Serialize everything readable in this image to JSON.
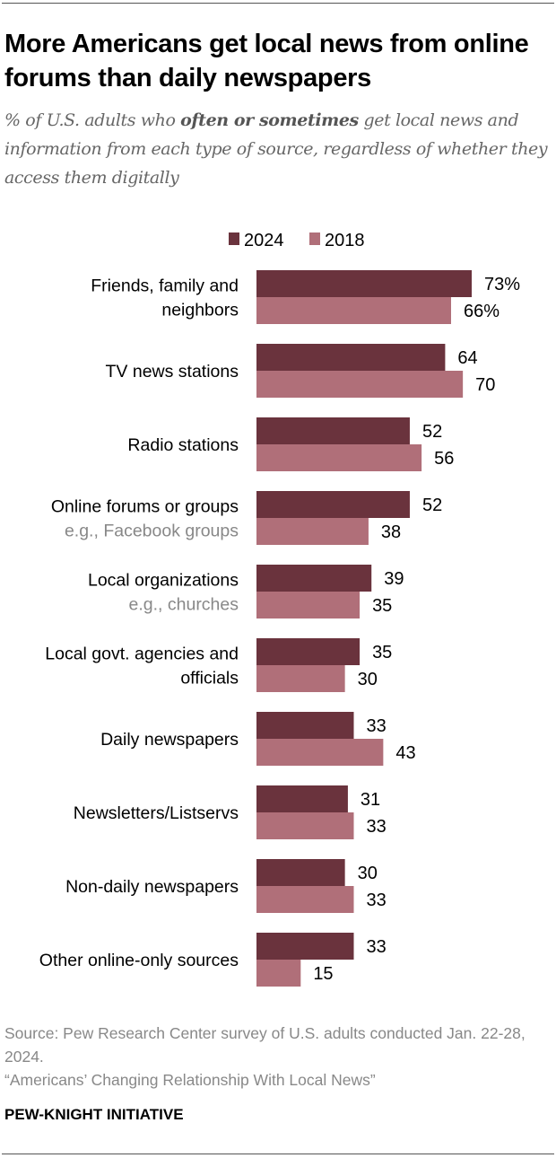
{
  "title": "More Americans get local news from online forums than daily newspapers",
  "subtitle": {
    "pre": "% of U.S. adults who ",
    "bold": "often or sometimes",
    "post": " get local news and information from each type of source, regardless of whether they access them digitally"
  },
  "chart_data": {
    "type": "bar",
    "orientation": "horizontal",
    "categories": [
      {
        "label": [
          "Friends, family and",
          "neighbors"
        ],
        "note": ""
      },
      {
        "label": [
          "TV news stations"
        ],
        "note": ""
      },
      {
        "label": [
          "Radio stations"
        ],
        "note": ""
      },
      {
        "label": [
          "Online forums or groups"
        ],
        "note": "e.g., Facebook groups"
      },
      {
        "label": [
          "Local organizations"
        ],
        "note": "e.g., churches"
      },
      {
        "label": [
          "Local govt. agencies and",
          "officials"
        ],
        "note": ""
      },
      {
        "label": [
          "Daily newspapers"
        ],
        "note": ""
      },
      {
        "label": [
          "Newsletters/Listservs"
        ],
        "note": ""
      },
      {
        "label": [
          "Non-daily newspapers"
        ],
        "note": ""
      },
      {
        "label": [
          "Other online-only sources"
        ],
        "note": ""
      }
    ],
    "series": [
      {
        "name": "2024",
        "color": "#6a333d",
        "values": [
          73,
          64,
          52,
          52,
          39,
          35,
          33,
          31,
          30,
          33
        ]
      },
      {
        "name": "2018",
        "color": "#b06f79",
        "values": [
          66,
          70,
          56,
          38,
          35,
          30,
          43,
          33,
          33,
          15
        ]
      }
    ],
    "value_suffix_first_row": "%",
    "xlim": [
      0,
      100
    ],
    "grid": false,
    "legend": "top"
  },
  "source": "Source: Pew Research Center survey of U.S. adults conducted Jan. 22-28, 2024.",
  "report": "“Americans’ Changing Relationship With Local News”",
  "brand": "PEW-KNIGHT INITIATIVE"
}
